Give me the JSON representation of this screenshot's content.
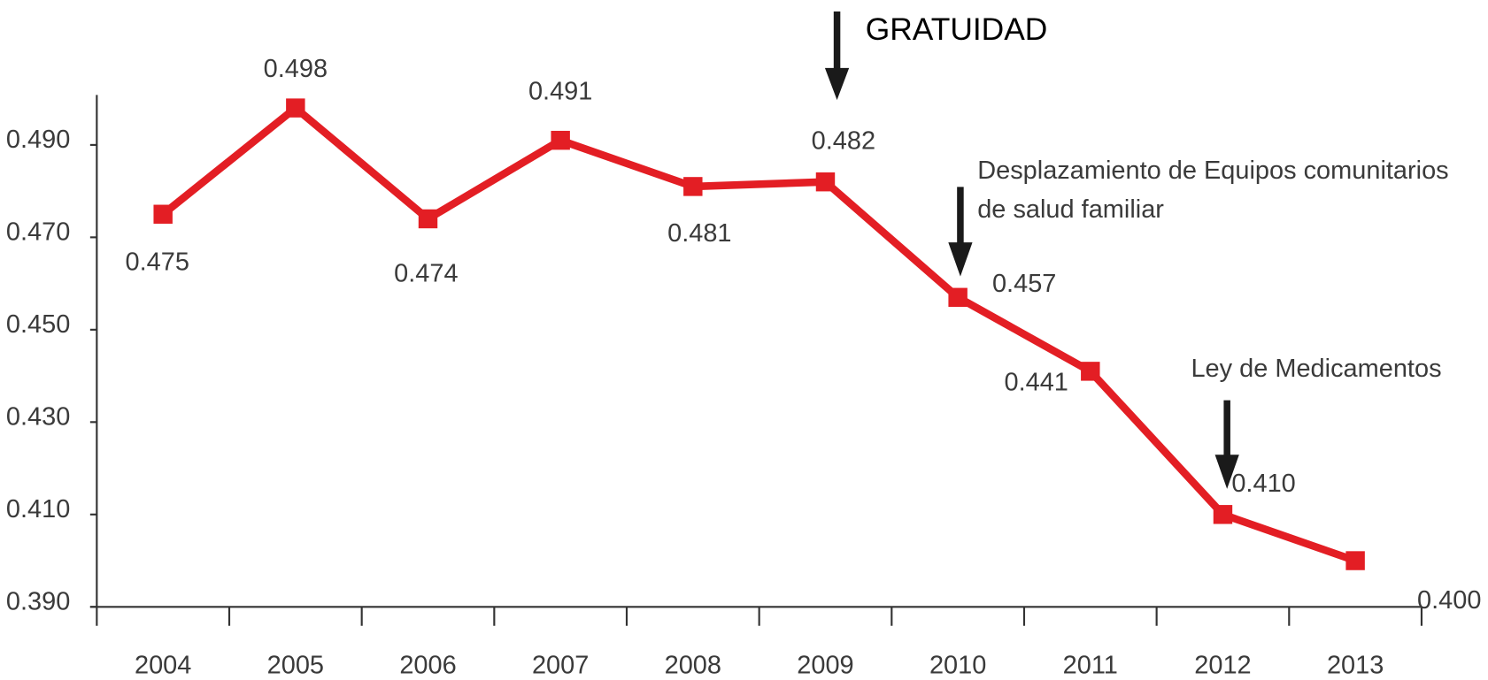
{
  "chart_data": {
    "type": "line",
    "categories": [
      "2004",
      "2005",
      "2006",
      "2007",
      "2008",
      "2009",
      "2010",
      "2011",
      "2012",
      "2013"
    ],
    "values": [
      0.475,
      0.498,
      0.474,
      0.491,
      0.481,
      0.482,
      0.457,
      0.441,
      0.41,
      0.4
    ],
    "value_labels": [
      "0.475",
      "0.498",
      "0.474",
      "0.491",
      "0.481",
      "0.482",
      "0.457",
      "0.441",
      "0.410",
      "0.400"
    ],
    "color": "#e31e24",
    "ylim": [
      0.39,
      0.5
    ],
    "yticks": [
      {
        "value": 0.39,
        "label": "0.390"
      },
      {
        "value": 0.41,
        "label": "0.410"
      },
      {
        "value": 0.43,
        "label": "0.430"
      },
      {
        "value": 0.45,
        "label": "0.450"
      },
      {
        "value": 0.47,
        "label": "0.470"
      },
      {
        "value": 0.49,
        "label": "0.490"
      }
    ],
    "annotations": [
      {
        "lines": [
          "GRATUIDAD"
        ]
      },
      {
        "lines": [
          "Desplazamiento de Equipos comunitarios",
          "de salud familiar"
        ]
      },
      {
        "lines": [
          "Ley de Medicamentos"
        ]
      }
    ]
  }
}
